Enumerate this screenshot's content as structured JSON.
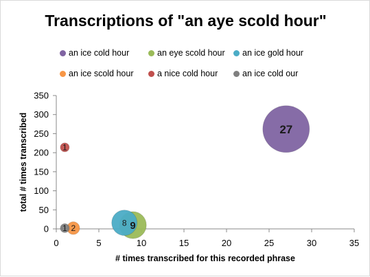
{
  "chart_data": {
    "type": "scatter",
    "subtype": "bubble",
    "title": "Transcriptions of \"an aye scold hour\"",
    "xlabel": "# times transcribed for this recorded phrase",
    "ylabel": "total # times transcribed",
    "xlim": [
      0,
      35
    ],
    "ylim": [
      0,
      350
    ],
    "x_ticks": [
      "0",
      "5",
      "10",
      "15",
      "20",
      "25",
      "30",
      "35"
    ],
    "y_ticks": [
      "0",
      "50",
      "100",
      "150",
      "200",
      "250",
      "300",
      "350"
    ],
    "grid": false,
    "legend_position": "top",
    "series": [
      {
        "name": "an ice cold hour",
        "color": "#8064a2",
        "x": 27,
        "y": 262,
        "size": 27,
        "label": "27"
      },
      {
        "name": "an eye scold hour",
        "color": "#9bbb59",
        "x": 9,
        "y": 10,
        "size": 9,
        "label": "9"
      },
      {
        "name": "an ice gold hour",
        "color": "#4bacc6",
        "x": 8,
        "y": 16,
        "size": 8,
        "label": "8"
      },
      {
        "name": "an ice scold hour",
        "color": "#f79646",
        "x": 2,
        "y": 2,
        "size": 2,
        "label": "2"
      },
      {
        "name": "a nice cold hour",
        "color": "#c0504d",
        "x": 1,
        "y": 214,
        "size": 1,
        "label": "1"
      },
      {
        "name": "an ice cold our",
        "color": "#7f7f7f",
        "x": 1,
        "y": 2,
        "size": 1,
        "label": "1"
      }
    ]
  }
}
